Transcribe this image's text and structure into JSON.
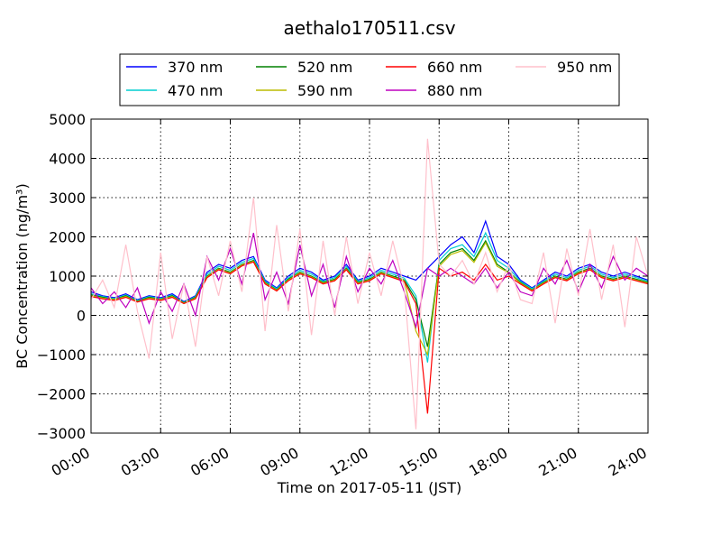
{
  "chart_data": {
    "type": "line",
    "title": "aethalo170511.csv",
    "xlabel": "Time on 2017-05-11 (JST)",
    "ylabel": "BC Concentration (ng/m³)",
    "x_ticks": [
      "00:00",
      "03:00",
      "06:00",
      "09:00",
      "12:00",
      "15:00",
      "18:00",
      "21:00",
      "24:00"
    ],
    "y_ticks": [
      5000,
      4000,
      3000,
      2000,
      1000,
      0,
      -1000,
      -2000,
      -3000
    ],
    "xlim": [
      0,
      24
    ],
    "ylim": [
      -3000,
      5000
    ],
    "grid": true,
    "legend": "top",
    "x": [
      0,
      0.5,
      1,
      1.5,
      2,
      2.5,
      3,
      3.5,
      4,
      4.5,
      5,
      5.5,
      6,
      6.5,
      7,
      7.5,
      8,
      8.5,
      9,
      9.5,
      10,
      10.5,
      11,
      11.5,
      12,
      12.5,
      13,
      13.5,
      14,
      14.5,
      15,
      15.5,
      16,
      16.5,
      17,
      17.5,
      18,
      18.5,
      19,
      19.5,
      20,
      20.5,
      21,
      21.5,
      22,
      22.5,
      23,
      23.5,
      24
    ],
    "series": [
      {
        "name": "370 nm",
        "color": "#0000ff",
        "values": [
          600,
          500,
          450,
          550,
          400,
          500,
          450,
          550,
          350,
          500,
          1100,
          1300,
          1200,
          1400,
          1500,
          900,
          700,
          1000,
          1200,
          1100,
          900,
          1000,
          1300,
          900,
          1000,
          1200,
          1100,
          1000,
          900,
          1200,
          1500,
          1800,
          2000,
          1600,
          2400,
          1500,
          1300,
          900,
          700,
          900,
          1100,
          1000,
          1200,
          1300,
          1100,
          1000,
          1100,
          1000,
          900
        ]
      },
      {
        "name": "470 nm",
        "color": "#00ced1",
        "values": [
          550,
          480,
          430,
          520,
          380,
          480,
          430,
          520,
          330,
          480,
          1050,
          1250,
          1150,
          1350,
          1450,
          870,
          680,
          950,
          1150,
          1050,
          870,
          960,
          1250,
          870,
          960,
          1150,
          1050,
          950,
          500,
          -1200,
          1400,
          1700,
          1800,
          1500,
          2100,
          1400,
          1200,
          870,
          680,
          870,
          1050,
          960,
          1150,
          1250,
          1050,
          960,
          1050,
          960,
          870
        ]
      },
      {
        "name": "520 nm",
        "color": "#008000",
        "values": [
          520,
          460,
          410,
          500,
          360,
          460,
          410,
          500,
          320,
          460,
          1000,
          1200,
          1100,
          1300,
          1400,
          840,
          650,
          920,
          1100,
          1000,
          840,
          920,
          1200,
          840,
          920,
          1100,
          1000,
          900,
          400,
          -800,
          1300,
          1600,
          1700,
          1400,
          1900,
          1300,
          1100,
          840,
          650,
          840,
          1000,
          920,
          1100,
          1200,
          1000,
          920,
          1000,
          920,
          840
        ]
      },
      {
        "name": "590 nm",
        "color": "#bcbc00",
        "values": [
          500,
          440,
          400,
          480,
          350,
          440,
          400,
          480,
          310,
          440,
          980,
          1180,
          1080,
          1280,
          1380,
          820,
          640,
          900,
          1080,
          980,
          820,
          900,
          1180,
          820,
          900,
          1080,
          980,
          880,
          -400,
          -1000,
          1250,
          1550,
          1650,
          1350,
          1850,
          1250,
          1080,
          820,
          640,
          820,
          980,
          900,
          1080,
          1180,
          980,
          900,
          980,
          900,
          820
        ]
      },
      {
        "name": "660 nm",
        "color": "#ff0000",
        "values": [
          480,
          420,
          380,
          460,
          340,
          420,
          380,
          460,
          300,
          420,
          960,
          1160,
          1060,
          1260,
          1360,
          800,
          620,
          880,
          1060,
          960,
          800,
          880,
          1160,
          800,
          880,
          1060,
          960,
          860,
          300,
          -2500,
          1200,
          1000,
          1100,
          900,
          1300,
          900,
          1000,
          800,
          620,
          800,
          960,
          880,
          1060,
          1160,
          960,
          880,
          960,
          880,
          800
        ]
      },
      {
        "name": "880 nm",
        "color": "#bf00bf",
        "values": [
          700,
          300,
          600,
          200,
          700,
          -200,
          600,
          100,
          800,
          0,
          1500,
          900,
          1700,
          800,
          2100,
          400,
          1100,
          300,
          1800,
          500,
          1300,
          200,
          1500,
          600,
          1200,
          800,
          1400,
          600,
          -300,
          1200,
          1000,
          1200,
          1000,
          800,
          1200,
          700,
          1100,
          600,
          500,
          1200,
          800,
          1400,
          600,
          1300,
          700,
          1500,
          900,
          1200,
          1000
        ]
      },
      {
        "name": "950 nm",
        "color": "#ffc0cb",
        "values": [
          400,
          900,
          200,
          1800,
          100,
          -1100,
          1600,
          -600,
          800,
          -800,
          1500,
          500,
          1900,
          600,
          3000,
          -400,
          2300,
          100,
          2200,
          -500,
          1900,
          0,
          2000,
          300,
          1600,
          500,
          1900,
          700,
          -2900,
          4500,
          1300,
          1000,
          1400,
          800,
          1600,
          600,
          1300,
          400,
          300,
          1600,
          -200,
          1700,
          500,
          2200,
          400,
          1800,
          -300,
          2000,
          1000
        ]
      }
    ]
  }
}
